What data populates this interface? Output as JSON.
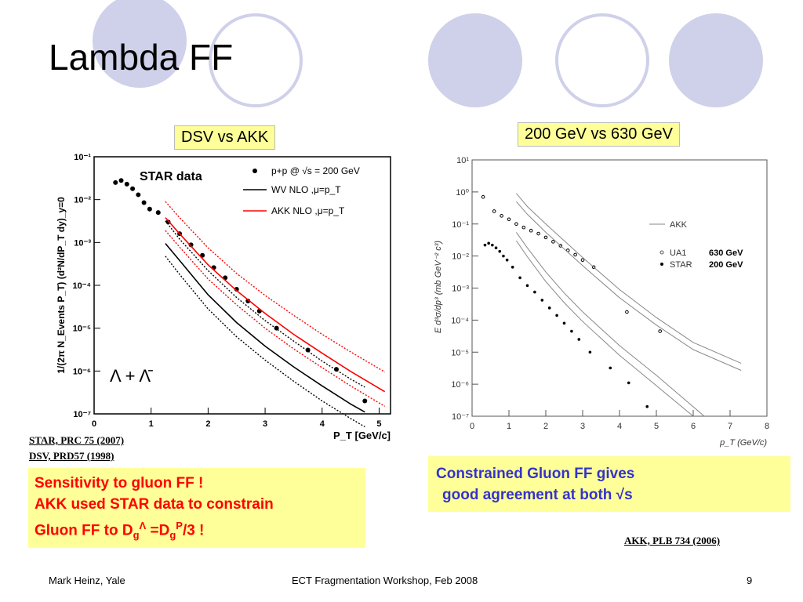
{
  "slide": {
    "title": "Lambda FF",
    "left_tag": "DSV vs AKK",
    "right_tag": "200 GeV vs 630 GeV",
    "refs": {
      "star": "STAR, PRC 75 (2007)",
      "dsv": "DSV, PRD57 (1998)",
      "akk": "AKK, PLB 734 (2006)"
    },
    "red_note": {
      "line1": "Sensitivity to gluon FF !",
      "line2": "AKK used STAR data to constrain",
      "line3_pre": "Gluon FF to D",
      "line3_sub1": "g",
      "line3_sup1": "Λ",
      "line3_mid": " =D",
      "line3_sub2": "g",
      "line3_sup2": "P",
      "line3_post": "/3 !"
    },
    "blue_note": {
      "line1": "Constrained Gluon FF gives",
      "line2": "good agreement at both √s"
    },
    "footer": {
      "author": "Mark Heinz, Yale",
      "event": "ECT Fragmentation Workshop, Feb 2008",
      "page": "9"
    },
    "colors": {
      "circle": "#cfd0e9",
      "tag_bg": "#ffff99",
      "red": "#ff0000",
      "blue": "#3333cc"
    }
  },
  "chart_data": [
    {
      "type": "scatter",
      "title": "",
      "label": "STAR data",
      "xlabel": "P_T [GeV/c]",
      "ylabel": "1/(2π N_Events P_T) (d²N/dP_T dy)_y=0",
      "xlim": [
        0,
        5.2
      ],
      "ylim_log10": [
        -7,
        -1
      ],
      "log_y": true,
      "xticks": [
        "0",
        "1",
        "2",
        "3",
        "4",
        "5"
      ],
      "yticks": [
        "10⁻⁷",
        "10⁻⁶",
        "10⁻⁵",
        "10⁻⁴",
        "10⁻³",
        "10⁻²",
        "10⁻¹"
      ],
      "legend_position": "top-right",
      "legend": [
        "p+p @ √s = 200 GeV",
        "WV NLO ,μ=p_T",
        "AKK NLO ,μ=p_T"
      ],
      "particle_label": "Λ + Λ̄",
      "series": [
        {
          "name": "p+p @ √s = 200 GeV",
          "kind": "points",
          "x": [
            0.375,
            0.475,
            0.575,
            0.675,
            0.775,
            0.875,
            0.975,
            1.125,
            1.3,
            1.5,
            1.7,
            1.9,
            2.1,
            2.3,
            2.5,
            2.7,
            2.9,
            3.2,
            3.75,
            4.25,
            4.75
          ],
          "y": [
            0.025,
            0.028,
            0.023,
            0.018,
            0.013,
            0.0085,
            0.006,
            0.005,
            0.003,
            0.0016,
            0.00088,
            0.0005,
            0.00026,
            0.00015,
            8.1e-05,
            4.3e-05,
            2.5e-05,
            1e-05,
            3.1e-06,
            1.1e-06,
            2e-07
          ]
        },
        {
          "name": "WV NLO ,μ=p_T",
          "kind": "line",
          "color": "#000000",
          "x": [
            1.25,
            1.5,
            2,
            2.5,
            3,
            3.5,
            4,
            4.5,
            4.75
          ],
          "y": [
            0.00095,
            0.00038,
            6e-05,
            1.35e-05,
            3.8e-06,
            1.25e-06,
            4.5e-07,
            1.7e-07,
            1.1e-07
          ]
        },
        {
          "name": "WV NLO upper",
          "kind": "dotted",
          "color": "#000000",
          "x": [
            1.25,
            1.5,
            2,
            2.5,
            3,
            3.5,
            4,
            4.5,
            4.75
          ],
          "y": [
            0.0032,
            0.0012,
            0.00022,
            5.2e-05,
            1.5e-05,
            5e-06,
            1.7e-06,
            6.5e-07,
            4.2e-07
          ]
        },
        {
          "name": "WV NLO lower",
          "kind": "dotted",
          "color": "#000000",
          "x": [
            1.25,
            1.5,
            2,
            2.5,
            3,
            3.5,
            4,
            4.5,
            4.75
          ],
          "y": [
            0.00048,
            0.00018,
            2.8e-05,
            6.3e-06,
            1.8e-06,
            5.8e-07,
            2e-07,
            7.8e-08,
            5e-08
          ]
        },
        {
          "name": "AKK NLO ,μ=p_T",
          "kind": "line",
          "color": "#ff0000",
          "x": [
            1.25,
            1.5,
            2,
            2.5,
            3,
            3.5,
            4,
            4.5,
            5.1
          ],
          "y": [
            0.0038,
            0.0016,
            0.0003,
            7.5e-05,
            2.2e-05,
            7.2e-06,
            2.6e-06,
            9.8e-07,
            3.3e-07
          ]
        },
        {
          "name": "AKK NLO upper",
          "kind": "dotted",
          "color": "#ff0000",
          "x": [
            1.25,
            1.5,
            2,
            2.5,
            3,
            3.5,
            4,
            4.5,
            5.1
          ],
          "y": [
            0.009,
            0.0038,
            0.00075,
            0.00019,
            5.8e-05,
            2e-05,
            7.2e-06,
            2.8e-06,
            9.5e-07
          ]
        },
        {
          "name": "AKK NLO lower",
          "kind": "dotted",
          "color": "#ff0000",
          "x": [
            1.25,
            1.5,
            2,
            2.5,
            3,
            3.5,
            4,
            4.5,
            5.1
          ],
          "y": [
            0.0019,
            0.00078,
            0.00014,
            3.5e-05,
            1e-05,
            3.3e-06,
            1.2e-06,
            4.5e-07,
            1.5e-07
          ]
        }
      ]
    },
    {
      "type": "scatter",
      "title": "",
      "xlabel": "p_T (GeV/c)",
      "ylabel": "E d³σ/dp³ (mb GeV⁻² c³)",
      "xlim": [
        0,
        8
      ],
      "ylim_log10": [
        -7,
        1
      ],
      "log_y": true,
      "xticks": [
        "0",
        "1",
        "2",
        "3",
        "4",
        "5",
        "6",
        "7",
        "8"
      ],
      "yticks": [
        "10⁻⁷",
        "10⁻⁶",
        "10⁻⁵",
        "10⁻⁴",
        "10⁻³",
        "10⁻²",
        "10⁻¹",
        "10⁰",
        "10¹"
      ],
      "legend_position": "right",
      "legend": [
        "AKK",
        "UA1",
        "STAR"
      ],
      "legend_energy": [
        "630 GeV",
        "200 GeV"
      ],
      "series": [
        {
          "name": "UA1",
          "kind": "open-points",
          "x": [
            0.3,
            0.6,
            0.8,
            1.0,
            1.2,
            1.4,
            1.6,
            1.8,
            2.0,
            2.2,
            2.4,
            2.6,
            2.8,
            3.0,
            3.3,
            4.2,
            5.1
          ],
          "y": [
            0.7,
            0.25,
            0.18,
            0.14,
            0.1,
            0.078,
            0.062,
            0.05,
            0.038,
            0.028,
            0.021,
            0.015,
            0.011,
            0.0075,
            0.0045,
            0.00018,
            4.5e-05
          ]
        },
        {
          "name": "STAR",
          "kind": "points",
          "x": [
            0.35,
            0.45,
            0.55,
            0.65,
            0.75,
            0.85,
            0.95,
            1.1,
            1.3,
            1.5,
            1.7,
            1.9,
            2.1,
            2.3,
            2.5,
            2.7,
            2.9,
            3.2,
            3.75,
            4.25,
            4.75
          ],
          "y": [
            0.022,
            0.025,
            0.022,
            0.018,
            0.014,
            0.01,
            0.0075,
            0.0045,
            0.0021,
            0.0012,
            0.00075,
            0.00042,
            0.00024,
            0.00014,
            8e-05,
            4.5e-05,
            2.5e-05,
            1e-05,
            3.2e-06,
            1.1e-06,
            2e-07
          ]
        },
        {
          "name": "AKK 630 upper",
          "kind": "line",
          "color": "#888888",
          "x": [
            1.2,
            1.5,
            2,
            3,
            4,
            5,
            6,
            7.3
          ],
          "y": [
            0.9,
            0.35,
            0.1,
            0.009,
            0.0009,
            0.00012,
            2e-05,
            4.5e-06
          ]
        },
        {
          "name": "AKK 630 lower",
          "kind": "line",
          "color": "#888888",
          "x": [
            1.2,
            1.5,
            2,
            3,
            4,
            5,
            6,
            7.3
          ],
          "y": [
            0.5,
            0.2,
            0.055,
            0.005,
            0.0005,
            7e-05,
            1.2e-05,
            2.7e-06
          ]
        },
        {
          "name": "AKK 200 upper",
          "kind": "line",
          "color": "#888888",
          "x": [
            1.2,
            1.5,
            2,
            2.5,
            3,
            4,
            5,
            6.3
          ],
          "y": [
            0.055,
            0.018,
            0.0032,
            0.0007,
            0.00018,
            1.6e-05,
            1.9e-06,
            1e-07
          ]
        },
        {
          "name": "AKK 200 lower",
          "kind": "line",
          "color": "#888888",
          "x": [
            1.2,
            1.5,
            2,
            2.5,
            3,
            4,
            5,
            6.0
          ],
          "y": [
            0.03,
            0.0095,
            0.0016,
            0.00035,
            9e-05,
            8e-06,
            9e-07,
            1e-07
          ]
        }
      ]
    }
  ]
}
